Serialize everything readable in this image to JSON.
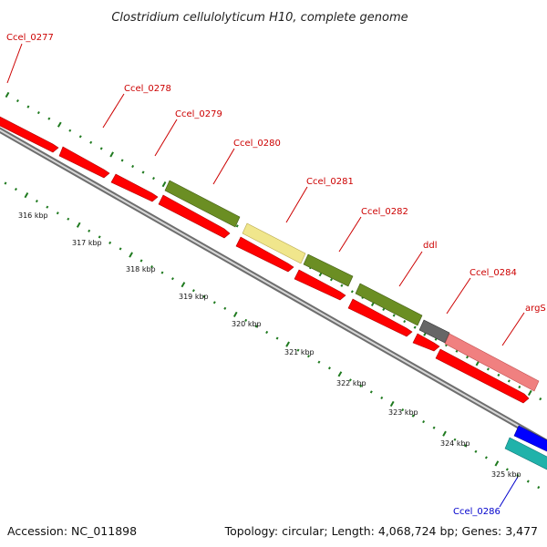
{
  "title": "Clostridium cellulolyticum H10, complete genome",
  "footer": {
    "accession": "Accession: NC_011898",
    "summary": "Topology: circular; Length: 4,068,724 bp; Genes: 3,477"
  },
  "colors": {
    "backbone": "#8c8c8c",
    "tick": "#1f7a1f",
    "label_red": "#cc0000",
    "label_blue": "#0000cc",
    "cds_forward": "#ff0000",
    "cds_reverse": "#ff0000",
    "cog_green": "#6b8e23",
    "cog_yellow": "#f0e68c",
    "cog_gray": "#666666",
    "cog_pink": "#f08080",
    "cog_cyan": "#20b2aa",
    "cds_blue": "#0000ff"
  },
  "kbp_labels": [
    "316 kbp",
    "317 kbp",
    "318 kbp",
    "319 kbp",
    "320 kbp",
    "321 kbp",
    "322 kbp",
    "323 kbp",
    "324 kbp",
    "325 kbp"
  ],
  "genes": [
    {
      "name": "Ccel_0277",
      "color": "#cc0000"
    },
    {
      "name": "Ccel_0278",
      "color": "#cc0000"
    },
    {
      "name": "Ccel_0279",
      "color": "#cc0000"
    },
    {
      "name": "Ccel_0280",
      "color": "#cc0000"
    },
    {
      "name": "Ccel_0281",
      "color": "#cc0000"
    },
    {
      "name": "Ccel_0282",
      "color": "#cc0000"
    },
    {
      "name": "ddl",
      "color": "#cc0000"
    },
    {
      "name": "Ccel_0284",
      "color": "#cc0000"
    },
    {
      "name": "argS",
      "color": "#cc0000"
    },
    {
      "name": "Ccel_0286",
      "color": "#0000cc"
    }
  ]
}
